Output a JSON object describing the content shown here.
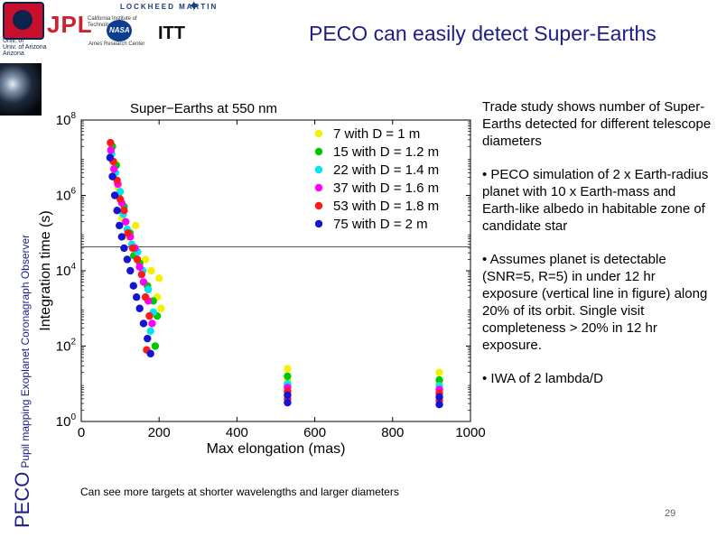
{
  "header": {
    "title": "PECO can easily detect Super-Earths",
    "logos": {
      "ua_lines": [
        "Univ. of",
        "Univ. of Arizona",
        "Arizona"
      ],
      "jpl": "JPL",
      "jpl_sub": "California Institute of Technology",
      "lockheed": "LOCKHEED MARTIN",
      "nasa": "NASA",
      "nasa_sub": "Ames Research Center",
      "itt": "ITT"
    }
  },
  "sidebar": {
    "peco": "PECO",
    "subtitle": "Pupil mapping Exoplanet Coronagraph Observer"
  },
  "right_text": {
    "intro": "Trade study shows number of Super-Earths detected for different telescope diameters",
    "bullet_1": "• PECO simulation of 2 x Earth-radius planet with 10 x Earth-mass and Earth-like albedo in habitable zone of candidate star",
    "bullet_2": "• Assumes planet is detectable (SNR=5, R=5) in under 12 hr exposure (vertical line in figure) along 20% of its orbit. Single visit completeness > 20% in 12 hr exposure.",
    "bullet_3": "• IWA of 2 lambda/D"
  },
  "caption": "Can see more targets at shorter wavelengths and larger diameters",
  "page_number": "29",
  "chart_data": {
    "type": "scatter",
    "title": "Super−Earths at 550 nm",
    "xlabel": "Max elongation (mas)",
    "ylabel": "Integration time (s)",
    "xlim": [
      0,
      1000
    ],
    "ylim_log10": [
      0,
      8
    ],
    "x_ticks": [
      "0",
      "200",
      "400",
      "600",
      "800",
      "1000"
    ],
    "y_ticks": [
      {
        "base": "10",
        "exp": "0"
      },
      {
        "base": "10",
        "exp": "2"
      },
      {
        "base": "10",
        "exp": "4"
      },
      {
        "base": "10",
        "exp": "6"
      },
      {
        "base": "10",
        "exp": "8"
      }
    ],
    "reference_line_seconds": 43200,
    "legend_position": "top-right",
    "series": [
      {
        "name": "7 with D = 1 m",
        "color": "#f2f200",
        "points": [
          [
            85,
            6.9
          ],
          [
            95,
            6.2
          ],
          [
            105,
            5.4
          ],
          [
            120,
            4.9
          ],
          [
            140,
            5.2
          ],
          [
            165,
            4.3
          ],
          [
            180,
            4.0
          ],
          [
            195,
            3.3
          ],
          [
            200,
            3.8
          ],
          [
            205,
            3.0
          ],
          [
            530,
            1.4
          ],
          [
            530,
            1.1
          ],
          [
            530,
            0.9
          ],
          [
            920,
            1.3
          ],
          [
            920,
            1.0
          ],
          [
            920,
            0.8
          ]
        ]
      },
      {
        "name": "15 with D = 1.2 m",
        "color": "#00c800",
        "points": [
          [
            80,
            7.3
          ],
          [
            90,
            6.8
          ],
          [
            95,
            6.0
          ],
          [
            110,
            5.7
          ],
          [
            125,
            5.0
          ],
          [
            135,
            4.4
          ],
          [
            150,
            4.2
          ],
          [
            170,
            3.6
          ],
          [
            185,
            3.2
          ],
          [
            195,
            2.8
          ],
          [
            190,
            2.0
          ],
          [
            530,
            1.2
          ],
          [
            530,
            0.95
          ],
          [
            920,
            1.1
          ],
          [
            920,
            0.85
          ]
        ]
      },
      {
        "name": "22 with D = 1.4 m",
        "color": "#00e5ee",
        "points": [
          [
            78,
            7.1
          ],
          [
            88,
            6.6
          ],
          [
            100,
            6.1
          ],
          [
            108,
            5.5
          ],
          [
            118,
            5.1
          ],
          [
            130,
            4.7
          ],
          [
            145,
            4.5
          ],
          [
            158,
            4.0
          ],
          [
            172,
            3.5
          ],
          [
            185,
            2.9
          ],
          [
            178,
            2.4
          ],
          [
            530,
            1.0
          ],
          [
            530,
            0.8
          ],
          [
            920,
            0.95
          ],
          [
            920,
            0.75
          ]
        ]
      },
      {
        "name": "37 with D = 1.6 m",
        "color": "#ff00ff",
        "points": [
          [
            76,
            7.2
          ],
          [
            84,
            6.7
          ],
          [
            94,
            6.3
          ],
          [
            104,
            5.8
          ],
          [
            114,
            5.3
          ],
          [
            126,
            4.9
          ],
          [
            138,
            4.6
          ],
          [
            150,
            4.1
          ],
          [
            160,
            3.7
          ],
          [
            172,
            3.2
          ],
          [
            182,
            2.6
          ],
          [
            530,
            0.9
          ],
          [
            530,
            0.7
          ],
          [
            920,
            0.85
          ],
          [
            920,
            0.65
          ]
        ]
      },
      {
        "name": "53 with D = 1.8 m",
        "color": "#ff1a1a",
        "points": [
          [
            75,
            7.4
          ],
          [
            82,
            6.9
          ],
          [
            92,
            6.4
          ],
          [
            100,
            5.9
          ],
          [
            110,
            5.6
          ],
          [
            120,
            5.0
          ],
          [
            132,
            4.6
          ],
          [
            144,
            4.3
          ],
          [
            155,
            3.9
          ],
          [
            165,
            3.3
          ],
          [
            175,
            2.8
          ],
          [
            168,
            1.9
          ],
          [
            530,
            0.8
          ],
          [
            530,
            0.6
          ],
          [
            920,
            0.75
          ],
          [
            920,
            0.55
          ]
        ]
      },
      {
        "name": "75 with D = 2 m",
        "color": "#1414d2",
        "points": [
          [
            74,
            7.0
          ],
          [
            80,
            6.5
          ],
          [
            86,
            6.0
          ],
          [
            92,
            5.6
          ],
          [
            98,
            5.2
          ],
          [
            104,
            4.9
          ],
          [
            110,
            4.6
          ],
          [
            118,
            4.3
          ],
          [
            126,
            4.0
          ],
          [
            134,
            3.6
          ],
          [
            142,
            3.3
          ],
          [
            150,
            3.0
          ],
          [
            160,
            2.6
          ],
          [
            170,
            2.2
          ],
          [
            178,
            1.8
          ],
          [
            530,
            0.7
          ],
          [
            530,
            0.5
          ],
          [
            920,
            0.65
          ],
          [
            920,
            0.45
          ]
        ]
      }
    ]
  }
}
